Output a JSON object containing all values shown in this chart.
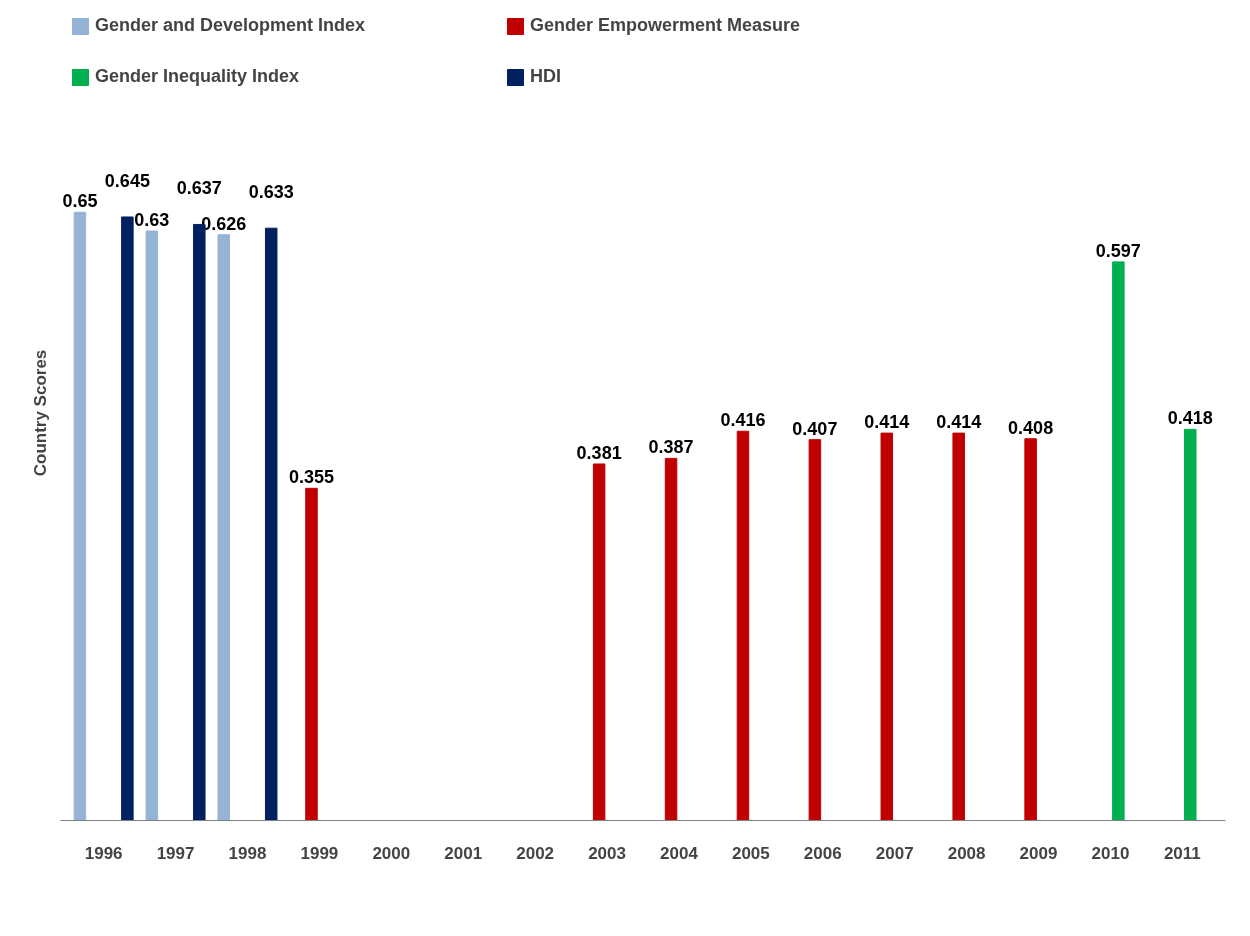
{
  "chart_data": {
    "type": "bar",
    "ylabel": "Country Scores",
    "categories": [
      "1996",
      "1997",
      "1998",
      "1999",
      "2000",
      "2001",
      "2002",
      "2003",
      "2004",
      "2005",
      "2006",
      "2007",
      "2008",
      "2009",
      "2010",
      "2011"
    ],
    "series": [
      {
        "name": "Gender and Development Index",
        "color": "#95b3d7",
        "values": [
          0.65,
          0.63,
          0.626,
          null,
          null,
          null,
          null,
          null,
          null,
          null,
          null,
          null,
          null,
          null,
          null,
          null
        ]
      },
      {
        "name": "Gender Empowerment Measure",
        "color": "#c00000",
        "values": [
          null,
          null,
          null,
          0.355,
          null,
          null,
          null,
          0.381,
          0.387,
          0.416,
          0.407,
          0.414,
          0.414,
          0.408,
          null,
          null
        ]
      },
      {
        "name": "Gender Inequality Index",
        "color": "#00b050",
        "values": [
          null,
          null,
          null,
          null,
          null,
          null,
          null,
          null,
          null,
          null,
          null,
          null,
          null,
          null,
          0.597,
          0.418
        ]
      },
      {
        "name": "HDI",
        "color": "#002060",
        "values": [
          0.645,
          0.637,
          0.633,
          null,
          null,
          null,
          null,
          null,
          null,
          null,
          null,
          null,
          null,
          null,
          null,
          null
        ]
      }
    ],
    "data_labels": true,
    "grid": false,
    "legend": "top",
    "tick_labels": "x"
  }
}
